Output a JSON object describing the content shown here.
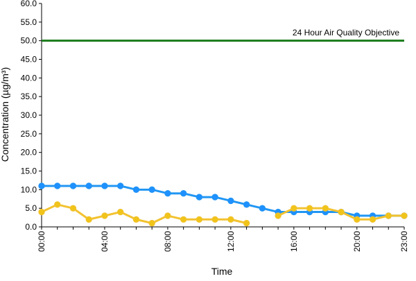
{
  "chart_data": {
    "type": "line",
    "xlabel": "Time",
    "ylabel": "Concentration (µg/m³)",
    "ylim": [
      0,
      60
    ],
    "yticks": [
      "0.0",
      "5.0",
      "10.0",
      "15.0",
      "20.0",
      "25.0",
      "30.0",
      "35.0",
      "40.0",
      "45.0",
      "50.0",
      "55.0",
      "60.0"
    ],
    "xticks": [
      "00:00",
      "04:00",
      "08:00",
      "12:00",
      "16:00",
      "20:00",
      "23:00"
    ],
    "x": [
      "00:00",
      "01:00",
      "02:00",
      "03:00",
      "04:00",
      "05:00",
      "06:00",
      "07:00",
      "08:00",
      "09:00",
      "10:00",
      "11:00",
      "12:00",
      "13:00",
      "14:00",
      "15:00",
      "16:00",
      "17:00",
      "18:00",
      "19:00",
      "20:00",
      "21:00",
      "22:00",
      "23:00"
    ],
    "grid": false,
    "series": [
      {
        "color": "#2196f3",
        "marker_color": "#1e90ff",
        "values": [
          11,
          11,
          11,
          11,
          11,
          11,
          10,
          10,
          9,
          9,
          8,
          8,
          7,
          6,
          5,
          4,
          4,
          4,
          4,
          4,
          3,
          3,
          3,
          3
        ]
      },
      {
        "color": "#f2c230",
        "marker_color": "#f0c419",
        "values": [
          4,
          6,
          5,
          2,
          3,
          4,
          2,
          1,
          3,
          2,
          2,
          2,
          2,
          1,
          null,
          3,
          5,
          5,
          5,
          4,
          2,
          2,
          3,
          3
        ]
      }
    ],
    "reference_line": {
      "value": 50,
      "label": "24 Hour Air Quality Objective",
      "color": "#1a7a1a"
    }
  }
}
